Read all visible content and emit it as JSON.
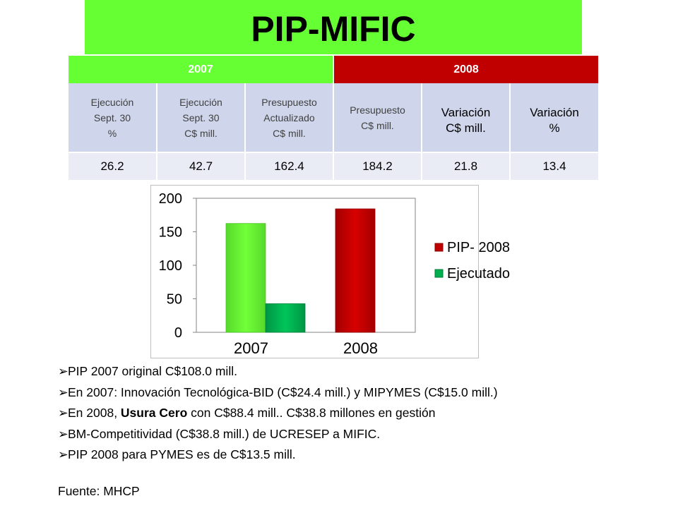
{
  "title": "PIP-MIFIC",
  "table": {
    "year_headers": [
      "2007",
      "2008"
    ],
    "col_headers": [
      [
        "Ejecución",
        "Sept. 30",
        "%"
      ],
      [
        "Ejecución",
        "Sept. 30",
        "C$ mill."
      ],
      [
        "Presupuesto",
        "Actualizado",
        "C$ mill."
      ],
      [
        "Presupuesto",
        "C$ mill."
      ],
      [
        "Variación",
        "C$ mill."
      ],
      [
        "Variación",
        "%"
      ]
    ],
    "values": [
      "26.2",
      "42.7",
      "162.4",
      "184.2",
      "21.8",
      "13.4"
    ]
  },
  "chart_data": {
    "type": "bar",
    "categories": [
      "2007",
      "2008"
    ],
    "series": [
      {
        "name": "PIP- 2008",
        "values": [
          162.4,
          184.2
        ],
        "colors": [
          "#66ff33",
          "#c00000"
        ]
      },
      {
        "name": "Ejecutado",
        "values": [
          42.7,
          null
        ],
        "colors": [
          "#00b050",
          "#00b050"
        ]
      }
    ],
    "ylim": [
      0,
      200
    ],
    "yticks": [
      "0",
      "50",
      "100",
      "150",
      "200"
    ],
    "grid": false,
    "legend": "right",
    "legend_colors": [
      "#c00000",
      "#00b050"
    ]
  },
  "bullets": [
    "PIP 2007 original C$108.0 mill.",
    "En 2007: Innovación Tecnológica-BID (C$24.4 mill.) y MIPYMES (C$15.0 mill.)",
    "En 2008, Usura Cero con C$88.4 mill.. C$38.8 millones en gestión",
    "BM-Competitividad (C$38.8 mill.) de UCRESEP a MIFIC.",
    "PIP 2008 para PYMES es de C$13.5 mill."
  ],
  "bullet_bold_part": "Usura Cero",
  "source": "Fuente: MHCP"
}
